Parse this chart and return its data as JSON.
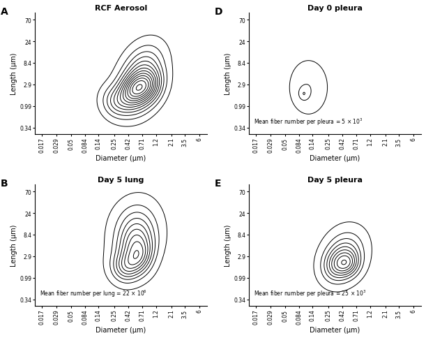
{
  "title_A": "RCF Aerosol",
  "title_B": "Day 5 lung",
  "title_D": "Day 0 pleura",
  "title_E": "Day 5 pleura",
  "xlabel": "Diameter (μm)",
  "ylabel": "Length (μm)",
  "xticks": [
    0.017,
    0.029,
    0.05,
    0.084,
    0.14,
    0.25,
    0.42,
    0.71,
    1.2,
    2.1,
    3.5,
    6
  ],
  "yticks": [
    0.34,
    0.99,
    2.9,
    8.4,
    24,
    70
  ],
  "xlim": [
    0.013,
    8.0
  ],
  "ylim": [
    0.25,
    100
  ],
  "panel_labels": [
    "A",
    "B",
    "D",
    "E"
  ],
  "ann_B": "Mean fiber number per lung = 22 × 10",
  "ann_B_exp": "6",
  "ann_D": "Mean fiber number per pleura = 5 × 10",
  "ann_D_exp": "3",
  "ann_E": "Mean fiber number per pleura = 25 × 10",
  "ann_E_exp": "3"
}
